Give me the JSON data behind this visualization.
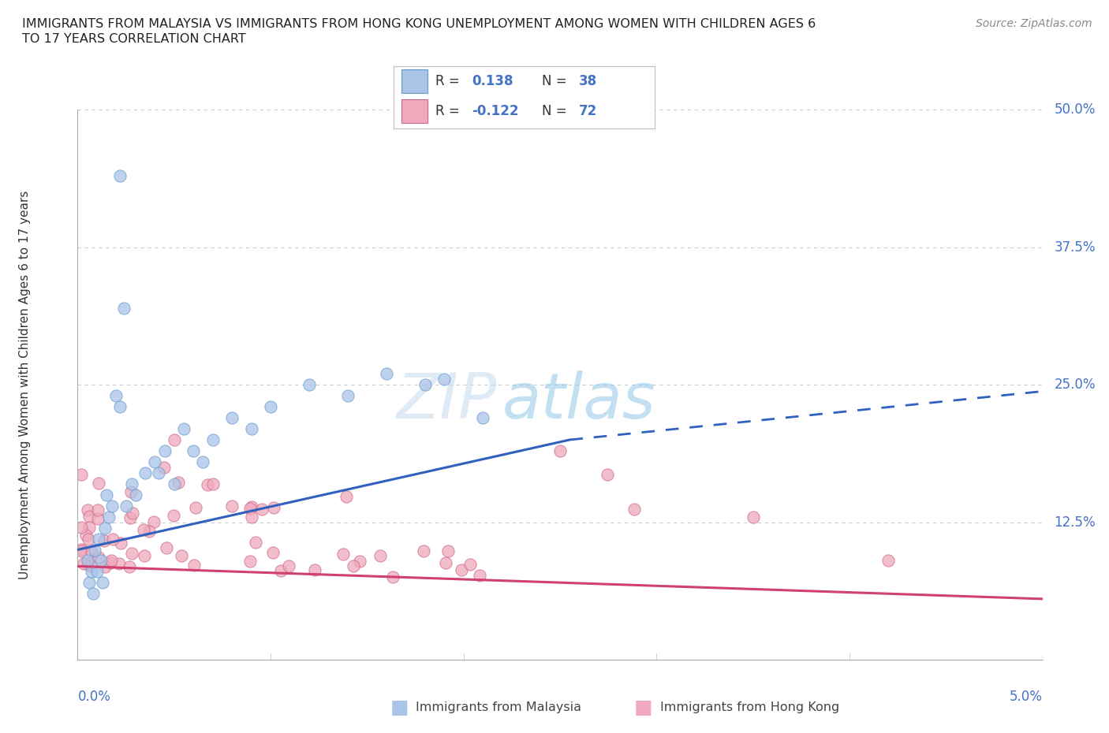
{
  "title_line1": "IMMIGRANTS FROM MALAYSIA VS IMMIGRANTS FROM HONG KONG UNEMPLOYMENT AMONG WOMEN WITH CHILDREN AGES 6",
  "title_line2": "TO 17 YEARS CORRELATION CHART",
  "source": "Source: ZipAtlas.com",
  "ylabel": "Unemployment Among Women with Children Ages 6 to 17 years",
  "xlim": [
    0.0,
    5.0
  ],
  "ylim": [
    0.0,
    50.0
  ],
  "ytick_vals": [
    12.5,
    25.0,
    37.5,
    50.0
  ],
  "ytick_labels": [
    "12.5%",
    "25.0%",
    "37.5%",
    "50.0%"
  ],
  "malaysia_color": "#aac4e8",
  "malaysia_edge": "#6699cc",
  "hongkong_color": "#f0a8bc",
  "hongkong_edge": "#cc6688",
  "trend_malaysia_color": "#3060c0",
  "trend_hongkong_color": "#d04070",
  "background_color": "#ffffff",
  "grid_color": "#cccccc",
  "R_malaysia": "0.138",
  "N_malaysia": "38",
  "R_hongkong": "-0.122",
  "N_hongkong": "72",
  "label_malaysia": "Immigrants from Malaysia",
  "label_hongkong": "Immigrants from Hong Kong",
  "watermark_color": "#d8eaf8",
  "mal_trend_x0": 0.0,
  "mal_trend_x1": 2.55,
  "mal_trend_y0": 10.0,
  "mal_trend_y1": 20.0,
  "mal_dash_x0": 2.55,
  "mal_dash_x1": 5.05,
  "mal_dash_y0": 20.0,
  "mal_dash_y1": 24.5,
  "hk_trend_x0": 0.0,
  "hk_trend_x1": 5.05,
  "hk_trend_y0": 8.5,
  "hk_trend_y1": 5.5
}
